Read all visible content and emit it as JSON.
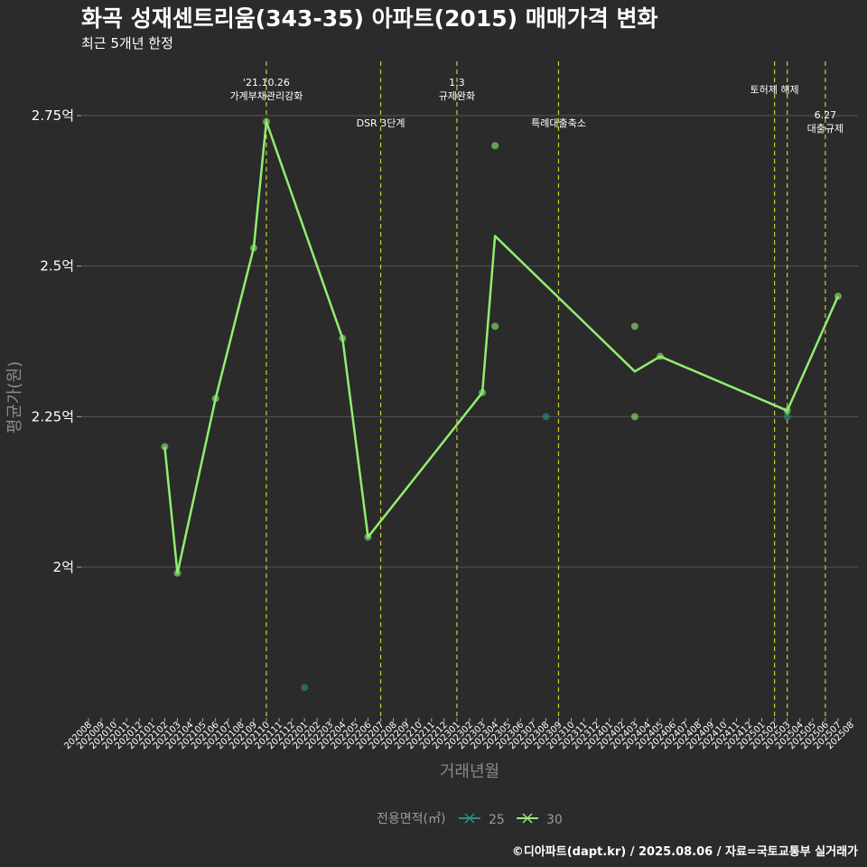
{
  "title": "화곡 성재센트리움(343-35) 아파트(2015) 매매가격 변화",
  "subtitle": "최근 5개년 한정",
  "caption": "©디아파트(dapt.kr) / 2025.08.06 / 자료=국토교통부 실거래가",
  "colors": {
    "background": "#2b2b2b",
    "grid": "#555555",
    "event_line": "#cccc33",
    "series_25": "#2a8f84",
    "series_30": "#90ee70"
  },
  "chart_data": {
    "type": "line",
    "xlabel": "거래년월",
    "ylabel": "평균가(원)",
    "ylim": [
      1.75,
      2.85
    ],
    "y_ticks": [
      {
        "value": 2.0,
        "label": "2억"
      },
      {
        "value": 2.25,
        "label": "2.25억"
      },
      {
        "value": 2.5,
        "label": "2.5억"
      },
      {
        "value": 2.75,
        "label": "2.75억"
      }
    ],
    "x_categories": [
      "202008",
      "202009",
      "202010",
      "202011",
      "202012",
      "202101",
      "202102",
      "202103",
      "202104",
      "202105",
      "202106",
      "202107",
      "202108",
      "202109",
      "202110",
      "202111",
      "202112",
      "202201",
      "202202",
      "202203",
      "202204",
      "202205",
      "202206",
      "202207",
      "202208",
      "202209",
      "202210",
      "202211",
      "202212",
      "202301",
      "202302",
      "202303",
      "202304",
      "202305",
      "202306",
      "202307",
      "202308",
      "202309",
      "202310",
      "202311",
      "202312",
      "202401",
      "202402",
      "202403",
      "202404",
      "202405",
      "202406",
      "202407",
      "202408",
      "202409",
      "202410",
      "202411",
      "202412",
      "202501",
      "202502",
      "202503",
      "202504",
      "202505",
      "202506",
      "202507",
      "202508"
    ],
    "events": [
      {
        "x": "202110",
        "lines": [
          "'21.10.26",
          "가계부채관리강화"
        ],
        "row": "top"
      },
      {
        "x": "202207",
        "lines": [
          "DSR 3단계"
        ],
        "row": "low"
      },
      {
        "x": "202301",
        "lines": [
          "1.3",
          "규제완화"
        ],
        "row": "top"
      },
      {
        "x": "202309",
        "lines": [
          "특례대출축소"
        ],
        "row": "low"
      },
      {
        "x": "202502",
        "lines": [
          "토허제 해제"
        ],
        "row": "mid"
      },
      {
        "x": "202503",
        "lines": [],
        "row": "none"
      },
      {
        "x": "202506",
        "lines": [
          "6.27",
          "대출규제"
        ],
        "row": "low2"
      }
    ],
    "series": [
      {
        "name": "25",
        "points": [
          {
            "x": "202201",
            "y": 1.8
          },
          {
            "x": "202308",
            "y": 2.25
          },
          {
            "x": "202503",
            "y": 2.25
          }
        ],
        "line": []
      },
      {
        "name": "30",
        "points": [
          {
            "x": "202102",
            "y": 2.2
          },
          {
            "x": "202103",
            "y": 1.99
          },
          {
            "x": "202106",
            "y": 2.28
          },
          {
            "x": "202109",
            "y": 2.53
          },
          {
            "x": "202110",
            "y": 2.74
          },
          {
            "x": "202204",
            "y": 2.38
          },
          {
            "x": "202206",
            "y": 2.05
          },
          {
            "x": "202303",
            "y": 2.29
          },
          {
            "x": "202304",
            "y": 2.4
          },
          {
            "x": "202304",
            "y": 2.7
          },
          {
            "x": "202403",
            "y": 2.4
          },
          {
            "x": "202403",
            "y": 2.25
          },
          {
            "x": "202405",
            "y": 2.35
          },
          {
            "x": "202503",
            "y": 2.26
          },
          {
            "x": "202507",
            "y": 2.45
          }
        ],
        "line": [
          {
            "x": "202102",
            "y": 2.2
          },
          {
            "x": "202103",
            "y": 1.99
          },
          {
            "x": "202106",
            "y": 2.28
          },
          {
            "x": "202109",
            "y": 2.53
          },
          {
            "x": "202110",
            "y": 2.74
          },
          {
            "x": "202204",
            "y": 2.38
          },
          {
            "x": "202206",
            "y": 2.05
          },
          {
            "x": "202303",
            "y": 2.29
          },
          {
            "x": "202304",
            "y": 2.55
          },
          {
            "x": "202403",
            "y": 2.325
          },
          {
            "x": "202405",
            "y": 2.35
          },
          {
            "x": "202503",
            "y": 2.26
          },
          {
            "x": "202507",
            "y": 2.45
          }
        ]
      }
    ]
  },
  "legend": {
    "title": "전용면적(㎡)",
    "items": [
      {
        "label": "25",
        "color": "#2a8f84"
      },
      {
        "label": "30",
        "color": "#90ee70"
      }
    ]
  }
}
